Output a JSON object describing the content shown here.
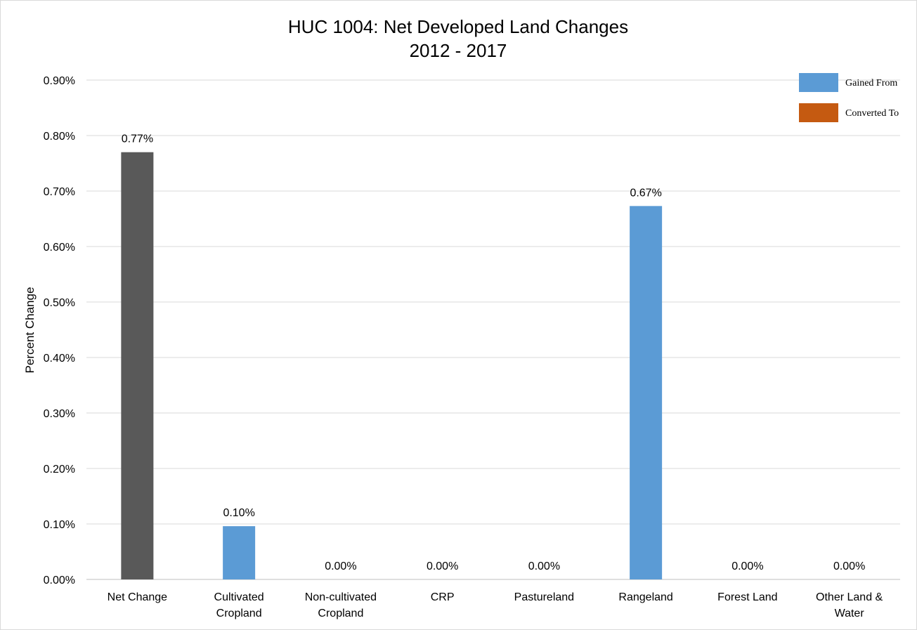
{
  "chart_data": {
    "type": "bar",
    "title": "HUC 1004: Net Developed Land Changes",
    "subtitle": "2012 - 2017",
    "xlabel": "",
    "ylabel": "Percent Change",
    "ylim": [
      0,
      0.9
    ],
    "ytick_values": [
      0,
      0.1,
      0.2,
      0.3,
      0.4,
      0.5,
      0.6,
      0.7,
      0.8,
      0.9
    ],
    "yticks": [
      "0.00%",
      "0.10%",
      "0.20%",
      "0.30%",
      "0.40%",
      "0.50%",
      "0.60%",
      "0.70%",
      "0.80%",
      "0.90%"
    ],
    "grid": true,
    "legend_position": "top-right",
    "categories": [
      [
        "Net Change"
      ],
      [
        "Cultivated",
        "Cropland"
      ],
      [
        "Non-cultivated",
        "Cropland"
      ],
      [
        "CRP"
      ],
      [
        "Pastureland"
      ],
      [
        "Rangeland"
      ],
      [
        "Forest Land"
      ],
      [
        "Other Land &",
        "Water"
      ]
    ],
    "values": [
      0.77,
      0.096,
      0,
      0,
      0,
      0.673,
      0,
      0
    ],
    "data_labels": [
      "0.77%",
      "0.10%",
      "0.00%",
      "0.00%",
      "0.00%",
      "0.67%",
      "0.00%",
      "0.00%"
    ],
    "bar_colors": [
      "#595959",
      "#5b9bd5",
      "#5b9bd5",
      "#5b9bd5",
      "#5b9bd5",
      "#5b9bd5",
      "#5b9bd5",
      "#5b9bd5"
    ],
    "legend": [
      {
        "name": "Gained From",
        "color": "#5b9bd5"
      },
      {
        "name": "Converted To",
        "color": "#c55a11"
      }
    ]
  }
}
